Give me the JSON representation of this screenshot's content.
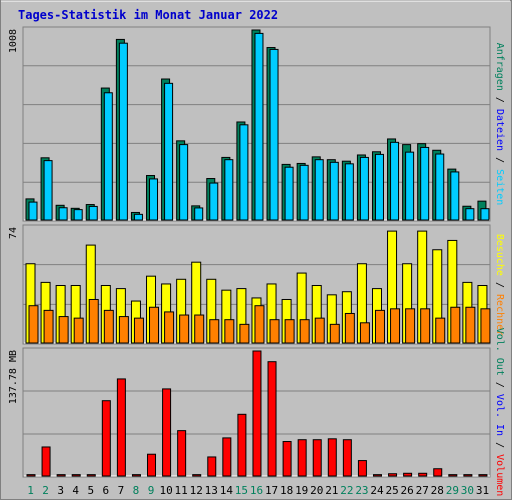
{
  "title": "Tages-Statistik im Monat Januar 2022",
  "colors": {
    "background": "#c0c0c0",
    "frame_dark": "#808080",
    "frame_light": "#ffffff",
    "grid": "#808080",
    "title": "#0000cc",
    "hits": "#00805c",
    "files": "#00ccff",
    "pages": "#00ccff",
    "visits": "#ffff00",
    "sites": "#ff8000",
    "kbytes": "#ff0000",
    "volume_in": "#0000ff",
    "volume_out": "#00805c",
    "weekend": "#00805c",
    "weekday": "#000000"
  },
  "right_labels": {
    "top": [
      {
        "text": "Anfragen",
        "color": "#00805c"
      },
      {
        "text": " / ",
        "color": "#000000"
      },
      {
        "text": "Dateien",
        "color": "#0000ff"
      },
      {
        "text": " / ",
        "color": "#000000"
      },
      {
        "text": "Seiten",
        "color": "#00ccff"
      }
    ],
    "middle": [
      {
        "text": "Besuche",
        "color": "#ffff00"
      },
      {
        "text": " / ",
        "color": "#000000"
      },
      {
        "text": "Rechner",
        "color": "#ff8000"
      }
    ],
    "bottom": [
      {
        "text": "Vol. Out",
        "color": "#00805c"
      },
      {
        "text": " / ",
        "color": "#000000"
      },
      {
        "text": "Vol. In",
        "color": "#0000ff"
      },
      {
        "text": " / ",
        "color": "#000000"
      },
      {
        "text": "Volumen",
        "color": "#ff0000"
      }
    ]
  },
  "chart_data": [
    {
      "type": "bar",
      "panel": "top",
      "ymax_label": "1008",
      "ylim": [
        0,
        1008
      ],
      "categories": [
        "1",
        "2",
        "3",
        "4",
        "5",
        "6",
        "7",
        "8",
        "9",
        "10",
        "11",
        "12",
        "13",
        "14",
        "15",
        "16",
        "17",
        "18",
        "19",
        "20",
        "21",
        "22",
        "23",
        "24",
        "25",
        "26",
        "27",
        "28",
        "29",
        "30",
        "31"
      ],
      "weekend_days": [
        "1",
        "2",
        "8",
        "9",
        "15",
        "16",
        "22",
        "23",
        "29",
        "30"
      ],
      "series": [
        {
          "key": "hits",
          "values": [
            112,
            330,
            78,
            62,
            82,
            700,
            958,
            40,
            236,
            748,
            420,
            75,
            220,
            332,
            520,
            1008,
            915,
            295,
            300,
            335,
            320,
            312,
            345,
            362,
            430,
            400,
            405,
            370,
            270,
            73,
            100
          ]
        },
        {
          "key": "files",
          "values": [
            95,
            315,
            65,
            55,
            72,
            675,
            938,
            30,
            218,
            725,
            400,
            64,
            196,
            320,
            505,
            990,
            905,
            280,
            290,
            320,
            306,
            298,
            332,
            348,
            412,
            360,
            385,
            350,
            255,
            60,
            60
          ]
        }
      ]
    },
    {
      "type": "bar",
      "panel": "middle",
      "ymax_label": "74",
      "ylim": [
        0,
        74
      ],
      "categories": [
        "1",
        "2",
        "3",
        "4",
        "5",
        "6",
        "7",
        "8",
        "9",
        "10",
        "11",
        "12",
        "13",
        "14",
        "15",
        "16",
        "17",
        "18",
        "19",
        "20",
        "21",
        "22",
        "23",
        "24",
        "25",
        "26",
        "27",
        "28",
        "29",
        "30",
        "31"
      ],
      "series": [
        {
          "key": "visits",
          "values": [
            51,
            39,
            37,
            37,
            63,
            37,
            35,
            27,
            43,
            38,
            41,
            52,
            41,
            34,
            35,
            29,
            38,
            28,
            45,
            37,
            31,
            33,
            51,
            35,
            72,
            51,
            72,
            60,
            66,
            39,
            37
          ]
        },
        {
          "key": "sites",
          "values": [
            24,
            21,
            17,
            16,
            28,
            21,
            17,
            16,
            23,
            20,
            18,
            18,
            15,
            15,
            12,
            24,
            15,
            15,
            15,
            16,
            12,
            19,
            13,
            21,
            22,
            22,
            22,
            16,
            23,
            23,
            22
          ]
        }
      ]
    },
    {
      "type": "bar",
      "panel": "bottom",
      "ymax_label": "137.78 MB",
      "ylim": [
        0,
        137.78
      ],
      "categories": [
        "1",
        "2",
        "3",
        "4",
        "5",
        "6",
        "7",
        "8",
        "9",
        "10",
        "11",
        "12",
        "13",
        "14",
        "15",
        "16",
        "17",
        "18",
        "19",
        "20",
        "21",
        "22",
        "23",
        "24",
        "25",
        "26",
        "27",
        "28",
        "29",
        "30",
        "31"
      ],
      "series": [
        {
          "key": "kbytes",
          "values": [
            1.5,
            32,
            1.5,
            1.5,
            1.5,
            83,
            107,
            1.5,
            24,
            96,
            50,
            1.5,
            21,
            42,
            68,
            137.78,
            126,
            38,
            40,
            40,
            41,
            40,
            17,
            1.5,
            2.5,
            3,
            3,
            8,
            1.5,
            1.5,
            1.5
          ]
        }
      ]
    }
  ]
}
